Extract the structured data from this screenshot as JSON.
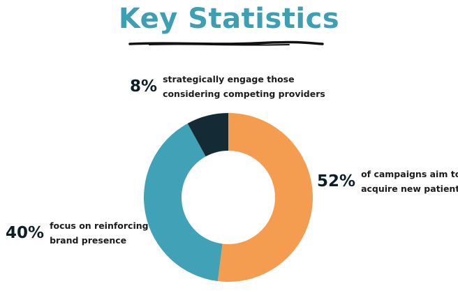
{
  "title": "Key Statistics",
  "colors": {
    "title": "#3e9fb2",
    "acquire": "#f49d51",
    "reinforce": "#41a1b6",
    "competing": "#142a35",
    "text": "#0e1e26"
  },
  "chart_data": {
    "type": "pie",
    "title": "Key Statistics",
    "donut": true,
    "slices": [
      {
        "value": 52,
        "label": "52%",
        "line1": "of campaigns aim to",
        "line2": "acquire new patients",
        "color": "#f49d51"
      },
      {
        "value": 40,
        "label": "40%",
        "line1": "focus on reinforcing",
        "line2": "brand presence",
        "color": "#41a1b6"
      },
      {
        "value": 8,
        "label": "8%",
        "line1": "strategically engage those",
        "line2": "considering competing providers",
        "color": "#142a35"
      }
    ]
  }
}
